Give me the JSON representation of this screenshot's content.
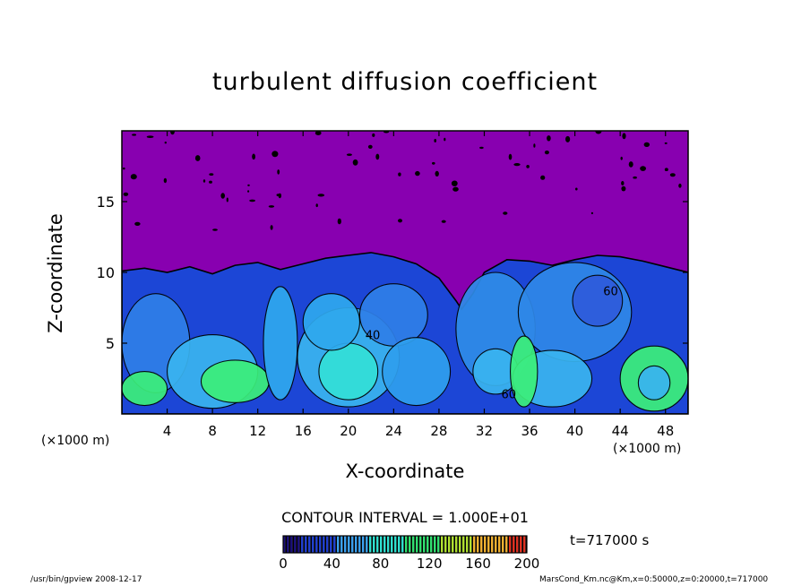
{
  "chart_data": {
    "type": "heatmap",
    "title": "turbulent diffusion coefficient",
    "xlabel": "X-coordinate",
    "ylabel": "Z-coordinate",
    "x_unit_left": "(×1000 m)",
    "x_unit_right": "(×1000 m)",
    "xlim": [
      0,
      50
    ],
    "ylim": [
      0,
      20
    ],
    "x_ticks": [
      4,
      8,
      12,
      16,
      20,
      24,
      28,
      32,
      36,
      40,
      44,
      48
    ],
    "y_ticks": [
      5,
      10,
      15
    ],
    "contour_labels": [
      {
        "x": 21.5,
        "y": 5.3,
        "text": "40"
      },
      {
        "x": 33.5,
        "y": 1.1,
        "text": "60"
      },
      {
        "x": 42.5,
        "y": 8.4,
        "text": "60"
      }
    ],
    "colorbar": {
      "min": 0,
      "max": 200,
      "ticks": [
        0,
        40,
        80,
        120,
        160,
        200
      ],
      "colors": [
        "#1a0f7a",
        "#1f3fd0",
        "#3aa0f0",
        "#2ee0d0",
        "#30e070",
        "#b0e030",
        "#f0b030",
        "#e03020"
      ]
    },
    "contour_interval": "CONTOUR INTERVAL = 1.000E+01",
    "time_label": "t=717000 s",
    "footer_left": "/usr/bin/gpview   2008-12-17",
    "footer_right": "MarsCond_Km.nc@Km,x=0:50000,z=0:20000,t=717000",
    "colors": {
      "background_field": "#8800b0",
      "low_field": "#1c46d6",
      "mid_field": "#3ab4f0",
      "high_field": "#3cf07a"
    }
  }
}
